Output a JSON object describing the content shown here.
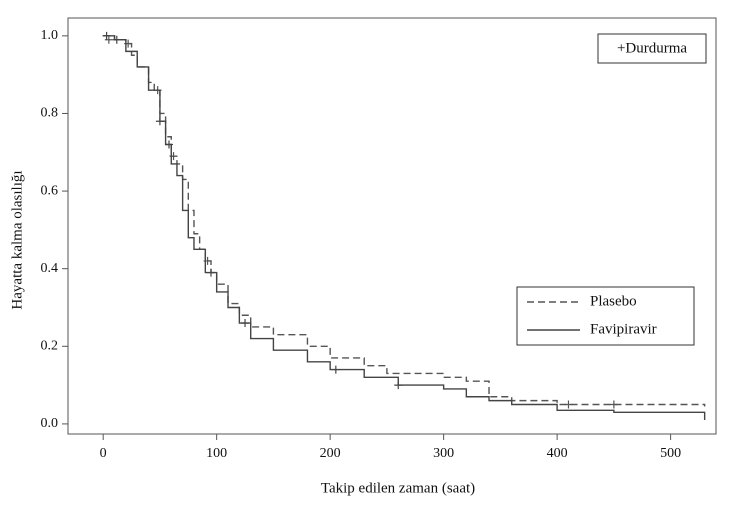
{
  "chart_data": {
    "type": "step",
    "x_label": "Takip edilen zaman (saat)",
    "y_label": "Hayatta kalma olasılığı",
    "annotation": "+Durdurma",
    "xlim": [
      -31,
      540
    ],
    "ylim": [
      -0.026,
      1.046
    ],
    "xticks": [
      0,
      100,
      200,
      300,
      400,
      500
    ],
    "yticks": [
      {
        "value": 0,
        "label": "0.0"
      },
      0.2,
      0.4,
      0.6,
      0.8,
      {
        "value": 1,
        "label": "1.0"
      }
    ],
    "grid": false,
    "legend": "right",
    "series": [
      {
        "name": "Plasebo",
        "color": "#555555",
        "dashed": true,
        "x": [
          0,
          10,
          20,
          25,
          30,
          40,
          45,
          50,
          55,
          60,
          65,
          70,
          75,
          80,
          85,
          90,
          95,
          100,
          110,
          120,
          130,
          150,
          180,
          200,
          230,
          250,
          300,
          320,
          340,
          360,
          400,
          450,
          530
        ],
        "y": [
          1.0,
          0.99,
          0.98,
          0.95,
          0.92,
          0.88,
          0.86,
          0.8,
          0.74,
          0.69,
          0.67,
          0.63,
          0.55,
          0.49,
          0.45,
          0.42,
          0.39,
          0.36,
          0.31,
          0.28,
          0.25,
          0.23,
          0.2,
          0.17,
          0.15,
          0.13,
          0.12,
          0.11,
          0.07,
          0.06,
          0.05,
          0.05,
          0.045
        ],
        "censored_x": [
          5,
          22,
          48,
          62,
          92,
          410,
          450
        ],
        "censored_y": [
          0.99,
          0.98,
          0.86,
          0.69,
          0.42,
          0.05,
          0.05
        ]
      },
      {
        "name": "Favipiravir",
        "color": "#444444",
        "dashed": false,
        "x": [
          0,
          10,
          20,
          30,
          40,
          50,
          55,
          60,
          65,
          70,
          75,
          80,
          90,
          100,
          110,
          120,
          130,
          150,
          180,
          200,
          230,
          260,
          300,
          320,
          340,
          360,
          400,
          450,
          530
        ],
        "y": [
          1.0,
          0.99,
          0.96,
          0.92,
          0.86,
          0.78,
          0.72,
          0.67,
          0.64,
          0.55,
          0.48,
          0.45,
          0.39,
          0.34,
          0.3,
          0.26,
          0.22,
          0.19,
          0.16,
          0.14,
          0.12,
          0.1,
          0.09,
          0.07,
          0.06,
          0.05,
          0.035,
          0.03,
          0.01
        ],
        "censored_x": [
          3,
          12,
          50,
          58,
          95,
          125,
          205,
          260
        ],
        "censored_y": [
          1.0,
          0.99,
          0.78,
          0.72,
          0.39,
          0.26,
          0.14,
          0.1
        ]
      }
    ]
  }
}
